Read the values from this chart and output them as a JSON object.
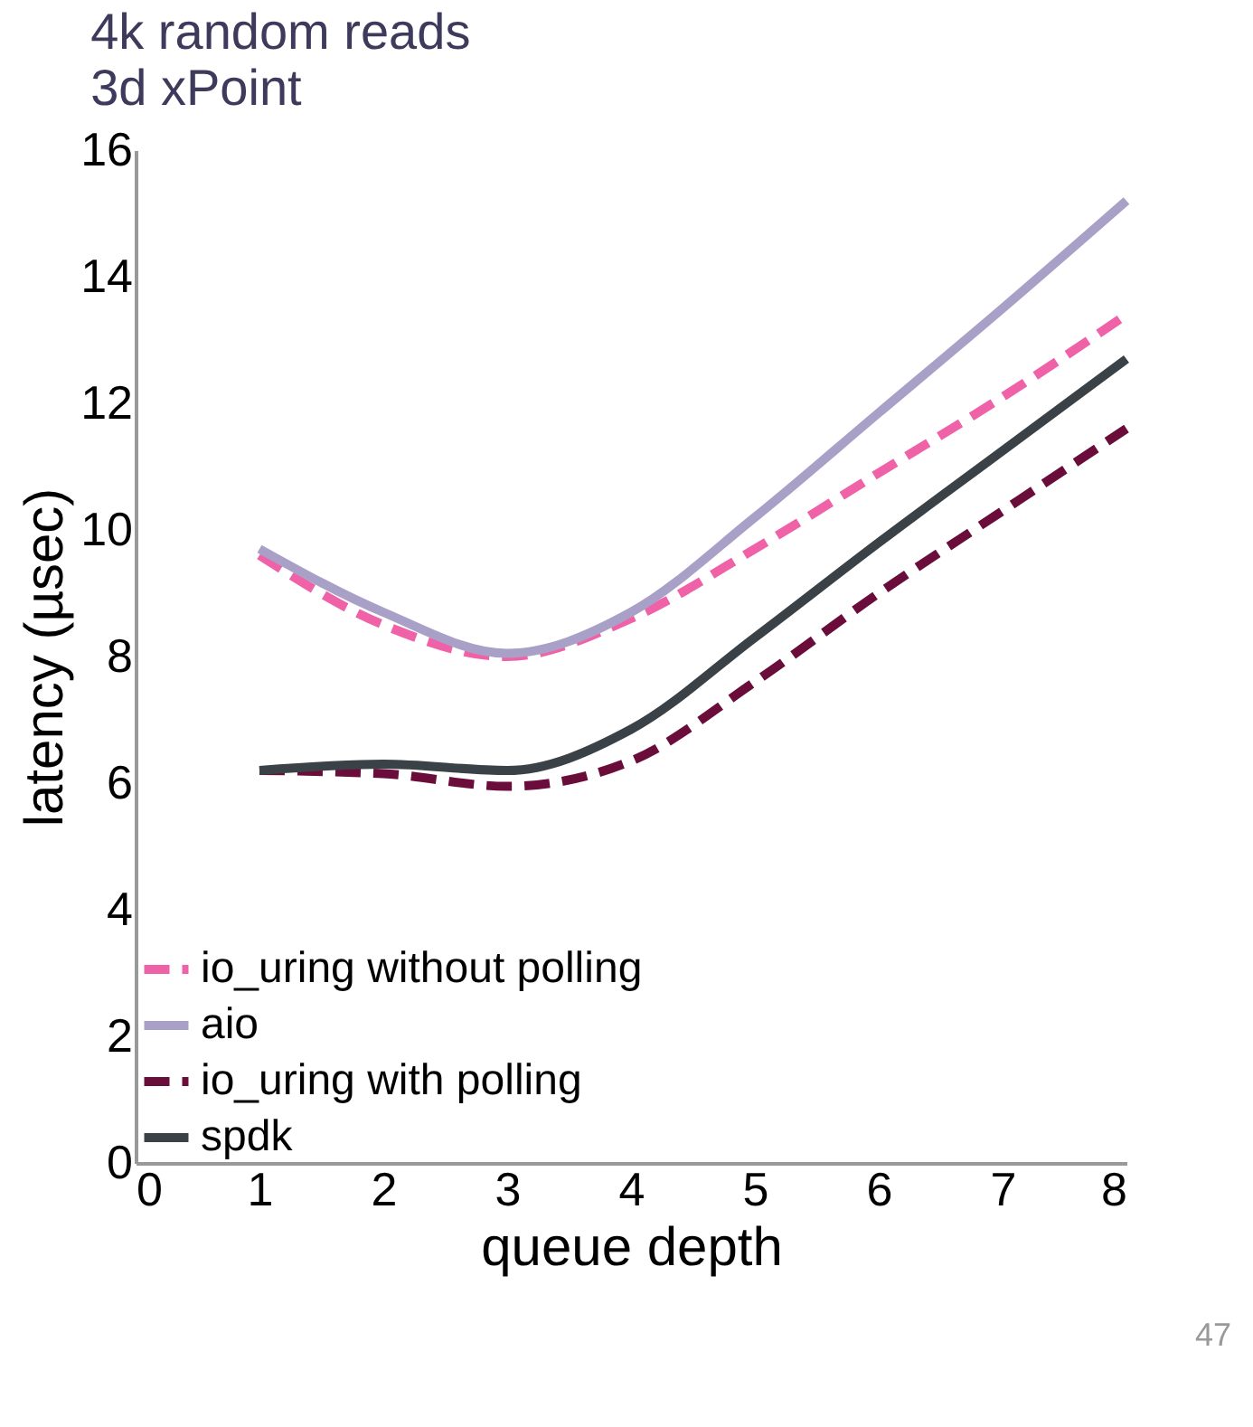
{
  "chart_data": {
    "type": "line",
    "title": "4k random reads",
    "subtitle": "3d xPoint",
    "xlabel": "queue depth",
    "ylabel": "latency (µsec)",
    "x": [
      1,
      2,
      3,
      4,
      5,
      6,
      7,
      8
    ],
    "xlim": [
      0,
      8
    ],
    "xticks": [
      0,
      1,
      2,
      3,
      4,
      5,
      6,
      7,
      8
    ],
    "ylim": [
      0,
      16
    ],
    "yticks": [
      0,
      2,
      4,
      6,
      8,
      10,
      12,
      14,
      16
    ],
    "series": [
      {
        "name": "io_uring without polling",
        "color": "#f062a8",
        "line_style": "dashed",
        "values": [
          9.6,
          8.5,
          8.0,
          8.6,
          9.7,
          10.9,
          12.1,
          13.4
        ]
      },
      {
        "name": "aio",
        "color": "#a9a0c8",
        "line_style": "solid",
        "values": [
          9.7,
          8.7,
          8.05,
          8.7,
          10.2,
          11.85,
          13.5,
          15.2
        ]
      },
      {
        "name": "io_uring with polling",
        "color": "#6b0d3a",
        "line_style": "dashed",
        "values": [
          6.2,
          6.15,
          5.95,
          6.35,
          7.6,
          9.0,
          10.3,
          11.6
        ]
      },
      {
        "name": "spdk",
        "color": "#3a4248",
        "line_style": "solid",
        "values": [
          6.2,
          6.3,
          6.2,
          6.85,
          8.3,
          9.8,
          11.25,
          12.7
        ]
      }
    ],
    "legend": "bottom left",
    "grid": false,
    "marker": "none",
    "annotations": [
      "47"
    ]
  }
}
